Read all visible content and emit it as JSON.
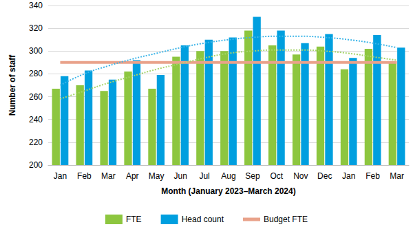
{
  "chart_data": {
    "type": "bar",
    "x_label": "Month (January 2023–March 2024)",
    "y_label": "Number of staff",
    "categories": [
      "Jan",
      "Feb",
      "Mar",
      "Apr",
      "May",
      "Jun",
      "Jul",
      "Aug",
      "Sep",
      "Oct",
      "Nov",
      "Dec",
      "Jan",
      "Feb",
      "Mar"
    ],
    "ylim": [
      200,
      340
    ],
    "yticks": [
      200,
      220,
      240,
      260,
      280,
      300,
      320,
      340
    ],
    "grid": true,
    "legend": "bottom",
    "series": [
      {
        "name": "FTE",
        "type": "bar",
        "color": "#8dc63f",
        "values": [
          267,
          270,
          265,
          282,
          267,
          295,
          300,
          300,
          318,
          305,
          297,
          304,
          284,
          302,
          291
        ]
      },
      {
        "name": "Head count",
        "type": "bar",
        "color": "#009fdf",
        "values": [
          278,
          283,
          275,
          292,
          279,
          305,
          310,
          312,
          330,
          318,
          307,
          315,
          294,
          314,
          303
        ]
      },
      {
        "name": "Budget FTE",
        "type": "line",
        "color": "#e9a28a",
        "values": [
          290,
          290,
          290,
          290,
          290,
          290,
          290,
          290,
          290,
          290,
          290,
          290,
          290,
          290,
          290
        ]
      },
      {
        "type": "line",
        "line_style": "dotted",
        "color": "#a6d46a",
        "values": [
          258,
          265,
          272,
          278,
          284,
          289,
          294,
          298,
          300,
          301,
          301,
          300,
          298,
          295,
          292
        ]
      },
      {
        "type": "line",
        "line_style": "dotted",
        "color": "#3db5e8",
        "values": [
          270,
          280,
          287,
          293,
          298,
          303,
          307,
          310,
          312,
          313,
          313,
          312,
          310,
          307,
          303
        ]
      }
    ]
  }
}
